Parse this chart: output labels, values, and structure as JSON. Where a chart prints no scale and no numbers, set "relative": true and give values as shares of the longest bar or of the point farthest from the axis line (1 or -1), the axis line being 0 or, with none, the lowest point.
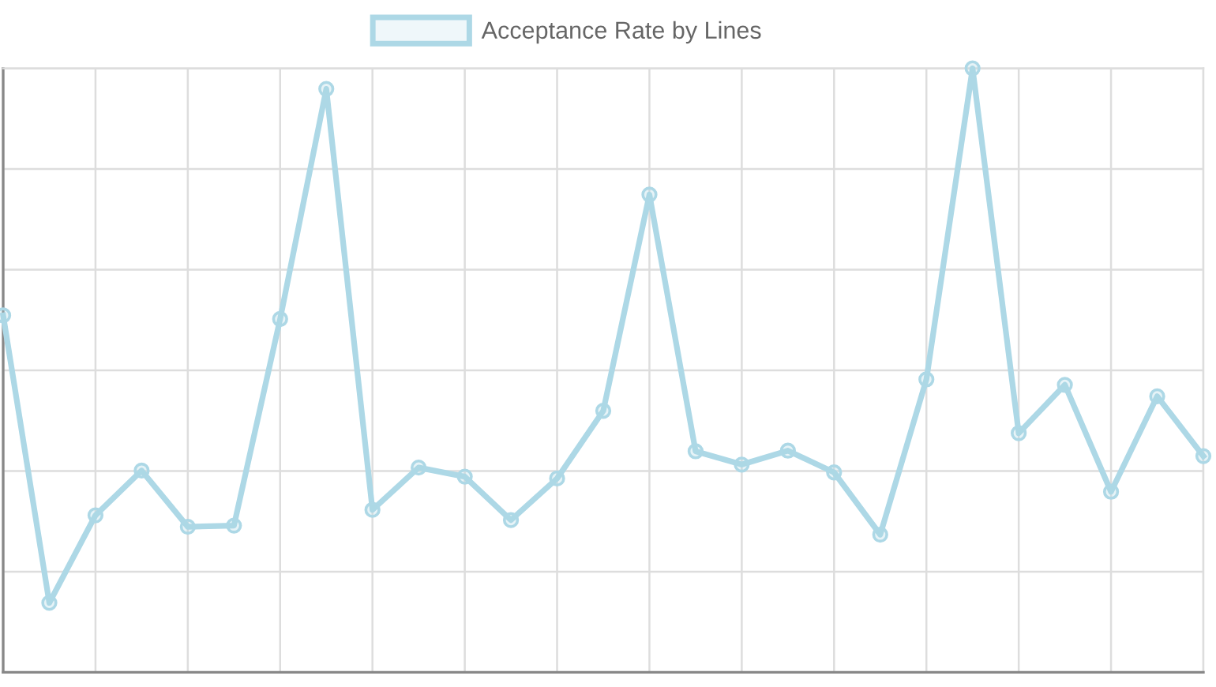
{
  "chart_data": {
    "type": "line",
    "categories": [
      null,
      null,
      null,
      null,
      null,
      null,
      null,
      null,
      null,
      null,
      null,
      null,
      null,
      null,
      null,
      null,
      null,
      null,
      null,
      null,
      null,
      null,
      null,
      null,
      null,
      null,
      null
    ],
    "series": [
      {
        "name": "Acceptance Rate by Lines",
        "color": "#add8e6",
        "values": [
          0.591,
          0.115,
          0.26,
          0.334,
          0.241,
          0.243,
          0.585,
          0.966,
          0.269,
          0.339,
          0.324,
          0.252,
          0.321,
          0.433,
          0.791,
          0.366,
          0.344,
          0.367,
          0.331,
          0.228,
          0.485,
          1.0,
          0.396,
          0.476,
          0.299,
          0.457,
          0.358
        ]
      }
    ],
    "relative": true,
    "grid": true,
    "legend": "top",
    "marker": "circle",
    "line_style": "solid"
  }
}
